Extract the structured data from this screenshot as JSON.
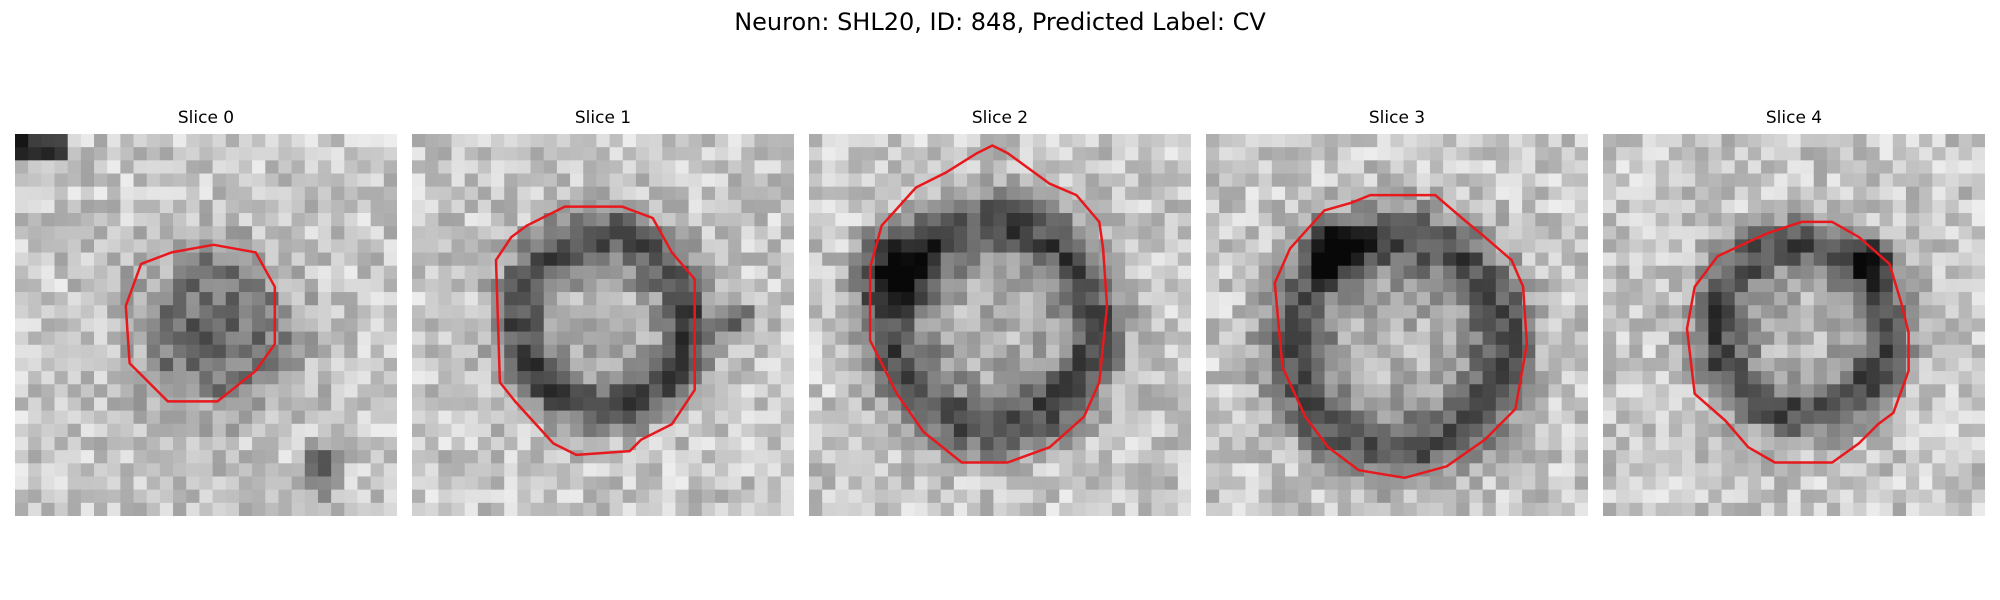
{
  "figure": {
    "title": "Neuron: SHL20, ID: 848, Predicted Label: CV"
  },
  "panels": [
    {
      "title": "Slice 0"
    },
    {
      "title": "Slice 1"
    },
    {
      "title": "Slice 2"
    },
    {
      "title": "Slice 3"
    },
    {
      "title": "Slice 4"
    }
  ],
  "style": {
    "contour_color": "#e8191d",
    "colormap": "gray"
  }
}
